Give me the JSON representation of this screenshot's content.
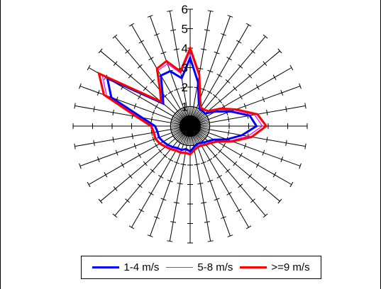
{
  "chart_data": {
    "type": "radar",
    "axis_count": 36,
    "r_range": [
      0,
      6
    ],
    "r_ticks": [
      "0",
      "1",
      "2",
      "3",
      "4",
      "5",
      "6"
    ],
    "legend_position": "bottom",
    "series": [
      {
        "name": "1-4 m/s",
        "color": "#0000ff",
        "values": [
          3.5,
          2.3,
          1.3,
          1.0,
          1.0,
          1.0,
          1.5,
          2.2,
          3.1,
          3.4,
          2.7,
          2.0,
          1.4,
          1.2,
          1.1,
          1.0,
          1.0,
          1.1,
          1.3,
          1.2,
          1.3,
          1.3,
          1.4,
          1.5,
          1.6,
          1.7,
          1.7,
          1.8,
          2.5,
          4.3,
          4.9,
          1.8,
          2.2,
          3.0,
          3.0,
          2.5
        ]
      },
      {
        "name": "5-8 m/s",
        "color": "#ff00ff",
        "values": [
          3.85,
          2.6,
          1.45,
          1.1,
          1.1,
          1.15,
          1.7,
          2.4,
          3.35,
          3.7,
          3.0,
          2.2,
          1.55,
          1.3,
          1.2,
          1.1,
          1.1,
          1.2,
          1.4,
          1.35,
          1.4,
          1.4,
          1.5,
          1.6,
          1.75,
          1.85,
          1.85,
          1.95,
          2.7,
          4.55,
          5.2,
          1.9,
          2.35,
          3.3,
          3.4,
          2.75
        ]
      },
      {
        "name": ">=9 m/s",
        "color": "#ff0000",
        "values": [
          4.0,
          2.7,
          1.5,
          1.1,
          1.1,
          1.2,
          1.8,
          2.5,
          3.5,
          3.9,
          3.2,
          2.3,
          1.6,
          1.35,
          1.25,
          1.15,
          1.15,
          1.25,
          1.45,
          1.4,
          1.45,
          1.45,
          1.55,
          1.65,
          1.8,
          1.9,
          1.9,
          2.0,
          2.8,
          4.7,
          5.4,
          1.95,
          2.4,
          3.4,
          3.55,
          2.85
        ]
      }
    ]
  }
}
